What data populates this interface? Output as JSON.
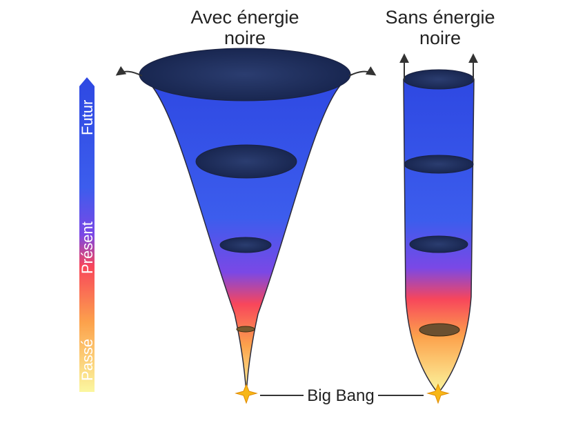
{
  "titles": {
    "left_line1": "Avec énergie",
    "left_line2": "noire",
    "right_line1": "Sans énergie",
    "right_line2": "noire"
  },
  "time_axis": {
    "future": "Futur",
    "present": "Présent",
    "past": "Passé"
  },
  "big_bang_label": "Big Bang",
  "colors": {
    "past": "#fbf7a0",
    "orange": "#fca24c",
    "present": "#f8465b",
    "violet": "#7a48e6",
    "future": "#3c5ded",
    "top": "#2e48e2",
    "galaxy_sky": "#1b2a55",
    "star": "#f7b718",
    "arrow": "#333333"
  }
}
